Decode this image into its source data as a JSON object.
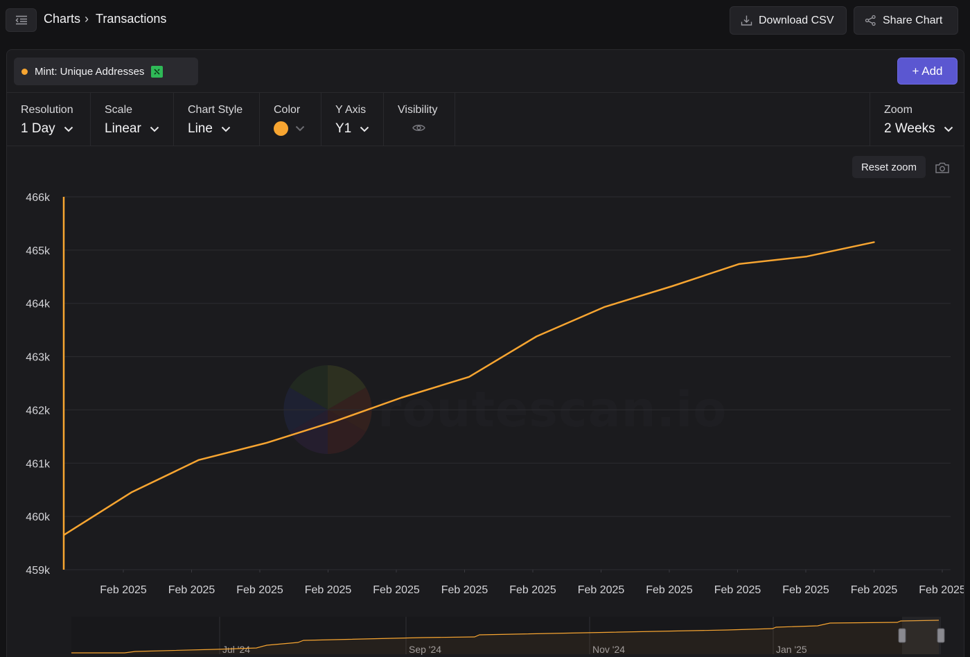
{
  "header": {
    "breadcrumb_root": "Charts",
    "breadcrumb_sep": "›",
    "breadcrumb_current": "Transactions",
    "download_label": "Download CSV",
    "share_label": "Share Chart"
  },
  "series_chip": {
    "label": "Mint: Unique Addresses",
    "color": "#f7a531",
    "chain_color": "#2fb957"
  },
  "add_label": "+ Add",
  "controls": {
    "resolution": {
      "label": "Resolution",
      "value": "1 Day"
    },
    "scale": {
      "label": "Scale",
      "value": "Linear"
    },
    "chart_style": {
      "label": "Chart Style",
      "value": "Line"
    },
    "color": {
      "label": "Color",
      "value": "#f7a531"
    },
    "y_axis": {
      "label": "Y Axis",
      "value": "Y1"
    },
    "visibility": {
      "label": "Visibility"
    },
    "zoom": {
      "label": "Zoom",
      "value": "2 Weeks"
    }
  },
  "reset_zoom_label": "Reset zoom",
  "watermark": "routescan.io",
  "chart_data": {
    "type": "line",
    "series": [
      {
        "name": "Mint: Unique Addresses",
        "color": "#f7a531",
        "x": [
          "Feb 2025",
          "Feb 2025",
          "Feb 2025",
          "Feb 2025",
          "Feb 2025",
          "Feb 2025",
          "Feb 2025",
          "Feb 2025",
          "Feb 2025",
          "Feb 2025",
          "Feb 2025",
          "Feb 2025",
          "Feb 2025"
        ],
        "values": [
          459650,
          460450,
          461060,
          461380,
          461780,
          462230,
          462620,
          463380,
          463930,
          464320,
          464740,
          464880,
          465150
        ]
      }
    ],
    "x_tick_labels": [
      "Feb 2025",
      "Feb 2025",
      "Feb 2025",
      "Feb 2025",
      "Feb 2025",
      "Feb 2025",
      "Feb 2025",
      "Feb 2025",
      "Feb 2025",
      "Feb 2025",
      "Feb 2025",
      "Feb 2025",
      "Feb 2025"
    ],
    "y_tick_labels": [
      "466k",
      "465k",
      "464k",
      "463k",
      "462k",
      "461k",
      "460k",
      "459k"
    ],
    "ylim": [
      459000,
      466000
    ],
    "grid": true,
    "navigator": {
      "labels": [
        "Jul '24",
        "Sep '24",
        "Nov '24",
        "Jan '25"
      ]
    }
  }
}
